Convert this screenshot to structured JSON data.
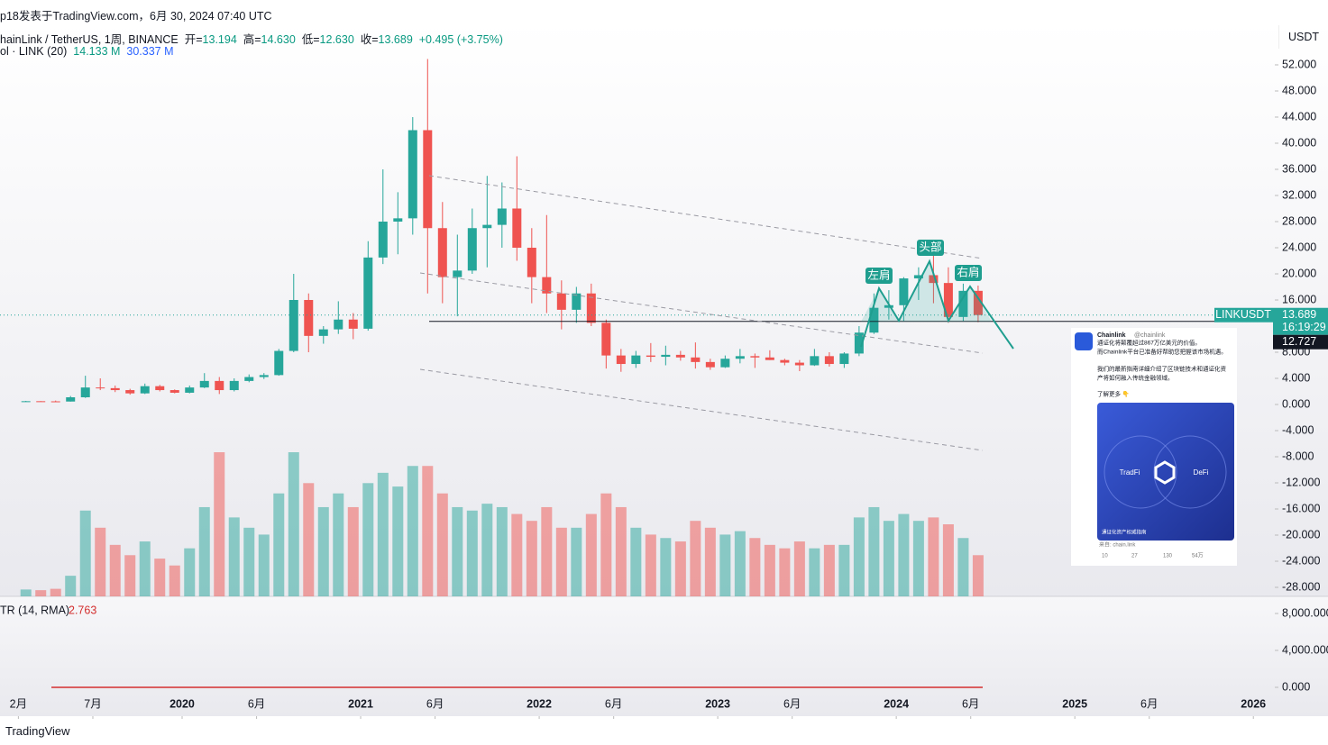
{
  "header": {
    "publisher": "p18发表于TradingView.com，6月 30, 2024 07:40 UTC",
    "symbol": "hainLink / TetherUS, 1周, BINANCE",
    "open_label": "开=",
    "open": "13.194",
    "high_label": "高=",
    "high": "14.630",
    "low_label": "低=",
    "low": "12.630",
    "close_label": "收=",
    "close": "13.689",
    "change": "+0.495 (+3.75%)",
    "vol_label": "ol · LINK (20)",
    "vol_value": "14.133 M",
    "vol_ma": "30.337 M",
    "currency": "USDT"
  },
  "chart_data": {
    "type": "candlestick",
    "x": [
      "2019-02",
      "2019-03",
      "2019-04",
      "2019-05",
      "2019-06",
      "2019-07",
      "2019-08",
      "2019-09",
      "2019-10",
      "2019-11",
      "2019-12",
      "2020-01",
      "2020-02",
      "2020-03",
      "2020-04",
      "2020-05",
      "2020-06",
      "2020-07",
      "2020-08",
      "2020-09",
      "2020-10",
      "2020-11",
      "2020-12",
      "2021-01",
      "2021-02",
      "2021-03",
      "2021-04",
      "2021-05",
      "2021-06",
      "2021-07",
      "2021-08",
      "2021-09",
      "2021-10",
      "2021-11",
      "2021-12",
      "2022-01",
      "2022-02",
      "2022-03",
      "2022-04",
      "2022-05",
      "2022-06",
      "2022-07",
      "2022-08",
      "2022-09",
      "2022-10",
      "2022-11",
      "2022-12",
      "2023-01",
      "2023-02",
      "2023-03",
      "2023-04",
      "2023-05",
      "2023-06",
      "2023-07",
      "2023-08",
      "2023-09",
      "2023-10",
      "2023-11",
      "2023-12",
      "2024-01",
      "2024-02",
      "2024-03",
      "2024-04",
      "2024-05",
      "2024-06"
    ],
    "open": [
      0.45,
      0.5,
      0.48,
      0.45,
      1.1,
      2.6,
      2.5,
      2.2,
      1.7,
      2.8,
      2.2,
      1.8,
      2.6,
      3.6,
      2.2,
      3.6,
      4.2,
      4.5,
      8.2,
      16,
      10.5,
      11.5,
      13,
      11.6,
      22.5,
      28,
      28.5,
      42,
      27,
      19.5,
      20.5,
      27,
      27.5,
      30,
      24,
      19.5,
      17,
      14.5,
      17,
      12.5,
      7.5,
      6.2,
      7.5,
      7.3,
      7.6,
      7.2,
      6.5,
      5.7,
      7,
      7.4,
      7.2,
      6.8,
      6.4,
      6,
      7.4,
      6.2,
      7.8,
      11,
      14.8,
      15.2,
      19.3,
      19.8,
      18.6,
      13.4,
      17.4
    ],
    "high": [
      0.55,
      0.52,
      0.6,
      1.3,
      4.4,
      4,
      2.9,
      2.4,
      3.2,
      3,
      2.3,
      2.9,
      4.8,
      4.2,
      4,
      4.6,
      4.8,
      8.5,
      20,
      17,
      12,
      15.8,
      14,
      25,
      36,
      32.5,
      44,
      52.9,
      31,
      26,
      30,
      35,
      34,
      38,
      27,
      29,
      19,
      18,
      18.5,
      13,
      8.5,
      8.2,
      9.4,
      9,
      8.2,
      9.5,
      7,
      7.5,
      8.5,
      7.8,
      8.3,
      7,
      6.8,
      8.5,
      8,
      8,
      12,
      17,
      17.5,
      19.5,
      21,
      22.8,
      21,
      18.5,
      18.2
    ],
    "low": [
      0.4,
      0.44,
      0.42,
      0.44,
      1,
      2.2,
      1.9,
      1.5,
      1.6,
      2,
      1.7,
      1.7,
      2.5,
      1.6,
      2,
      3.4,
      3.9,
      4.4,
      8,
      8,
      9.3,
      10.8,
      10,
      11.3,
      21.5,
      23,
      26,
      17,
      15.5,
      13.5,
      20,
      21,
      24,
      22,
      15.5,
      14,
      11.5,
      12.5,
      12,
      5.5,
      5,
      5.6,
      6.5,
      6,
      6.7,
      5.5,
      5.3,
      5.6,
      6.3,
      5.6,
      6.8,
      6,
      5.1,
      5.9,
      5.8,
      5.6,
      7.4,
      10.8,
      13,
      12.8,
      16,
      15.5,
      12.5,
      12.8,
      12.6
    ],
    "close": [
      0.5,
      0.48,
      0.45,
      1.1,
      2.6,
      2.5,
      2.2,
      1.7,
      2.8,
      2.2,
      1.8,
      2.6,
      3.6,
      2.2,
      3.6,
      4.2,
      4.5,
      8.2,
      16,
      10.5,
      11.5,
      13,
      11.6,
      22.5,
      28,
      28.5,
      42,
      27,
      19.5,
      20.5,
      27,
      27.5,
      30,
      24,
      19.5,
      17,
      14.5,
      17,
      12.5,
      7.5,
      6.2,
      7.5,
      7.3,
      7.6,
      7.2,
      6.5,
      5.7,
      7,
      7.4,
      7.2,
      6.8,
      6.4,
      6,
      7.4,
      6.2,
      7.8,
      11,
      14.8,
      15.2,
      19.3,
      19.8,
      18.6,
      13.4,
      17.4,
      13.689
    ],
    "volume": [
      20,
      18,
      22,
      60,
      250,
      200,
      150,
      120,
      160,
      110,
      90,
      140,
      260,
      420,
      230,
      200,
      180,
      300,
      420,
      330,
      260,
      300,
      260,
      330,
      360,
      320,
      380,
      380,
      300,
      260,
      250,
      270,
      260,
      240,
      220,
      260,
      200,
      200,
      240,
      300,
      260,
      200,
      180,
      170,
      160,
      220,
      200,
      180,
      190,
      170,
      150,
      140,
      160,
      140,
      150,
      150,
      230,
      260,
      220,
      240,
      220,
      230,
      210,
      170,
      120
    ],
    "up_color": "#26a69a",
    "down_color": "#ef5350",
    "xlim": [
      2018.98,
      2026.11
    ],
    "xticks": [
      {
        "value": 2019.083,
        "label": "2月"
      },
      {
        "value": 2019.5,
        "label": "7月"
      },
      2020,
      {
        "value": 2020.417,
        "label": "6月"
      },
      2021,
      {
        "value": 2021.417,
        "label": "6月"
      },
      2022,
      {
        "value": 2022.417,
        "label": "6月"
      },
      2023,
      {
        "value": 2023.417,
        "label": "6月"
      },
      2024,
      {
        "value": 2024.417,
        "label": "6月"
      },
      2025,
      {
        "value": 2025.417,
        "label": "6月"
      },
      2026
    ],
    "ylim": [
      -29.38,
      58.48
    ],
    "yticks": [
      {
        "value": 52,
        "label": "52.000"
      },
      {
        "value": 48,
        "label": "48.000"
      },
      {
        "value": 44,
        "label": "44.000"
      },
      {
        "value": 40,
        "label": "40.000"
      },
      {
        "value": 36,
        "label": "36.000"
      },
      {
        "value": 32,
        "label": "32.000"
      },
      {
        "value": 28,
        "label": "28.000"
      },
      {
        "value": 24,
        "label": "24.000"
      },
      {
        "value": 20,
        "label": "20.000"
      },
      {
        "value": 16,
        "label": "16.000"
      },
      {
        "value": 12,
        "label": "12.000"
      },
      {
        "value": 8,
        "label": "8.000"
      },
      {
        "value": 4,
        "label": "4.000"
      },
      {
        "value": 0,
        "label": "0.000"
      },
      {
        "value": -4,
        "label": "-4.000"
      },
      {
        "value": -8,
        "label": "-8.000"
      },
      {
        "value": -12,
        "label": "-12.000"
      },
      {
        "value": -16,
        "label": "-16.000"
      },
      {
        "value": -20,
        "label": "-20.000"
      },
      {
        "value": -24,
        "label": "-24.000"
      },
      {
        "value": -28,
        "label": "-28.000"
      }
    ],
    "price_tag": "LINKUSDT",
    "last_price": 13.689,
    "last_price_label": "13.689",
    "countdown": "16:19:29",
    "neckline": 12.727,
    "neckline_label": "12.727",
    "annotations": [
      "左肩",
      "头部",
      "右肩"
    ],
    "atr": {
      "title": "TR (14, RMA)",
      "value": 2.763,
      "ylim": [
        -3122,
        9853
      ],
      "yticks": [
        {
          "value": 8000,
          "label": "8,000.000"
        },
        {
          "value": 4000,
          "label": "4,000.000"
        },
        {
          "value": 0,
          "label": "0.000"
        }
      ]
    }
  },
  "tweet": {
    "name": "Chainlink",
    "handle": "@chainlink",
    "lines": [
      "通证化将颠覆超过867万亿美元的价值。",
      "而Chainlink平台已准备好帮助您把握该市场机遇。",
      "我们的最新指南详细介绍了区块链技术和通证化资",
      "产将如何融入传统金融领域。",
      "了解更多 👇"
    ],
    "left": "TradFi",
    "right": "DeFi",
    "caption": "通证化资产权威指南",
    "source": "来自: chain.link",
    "stats": [
      "10",
      "27",
      "130",
      "54万"
    ]
  },
  "footer": "TradingView"
}
